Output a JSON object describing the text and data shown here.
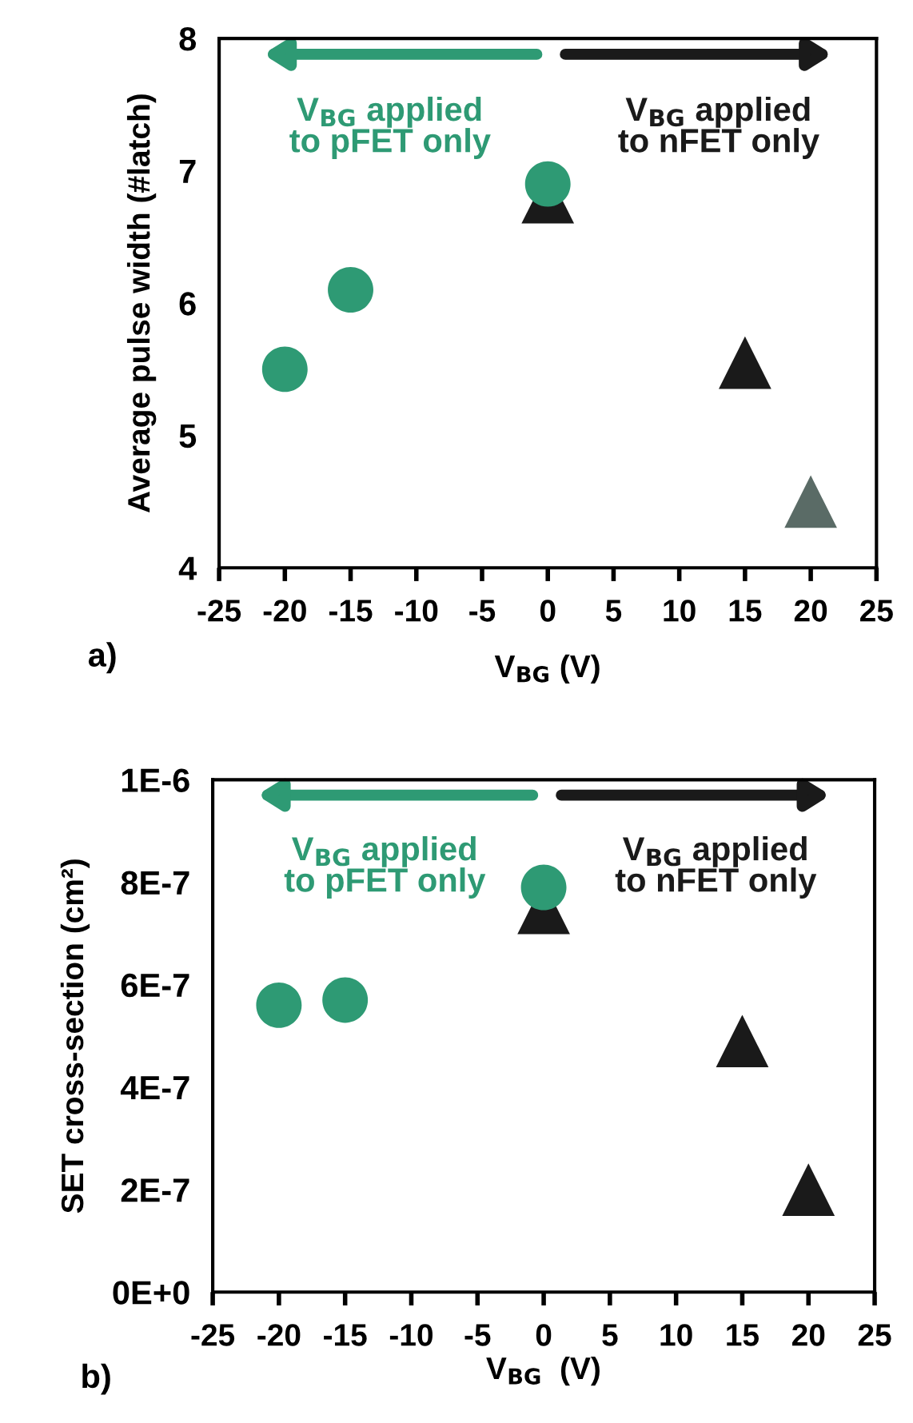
{
  "chart_data": [
    {
      "type": "scatter",
      "xlabel": "V$_{BG}$ (V)",
      "ylabel": "Average pulse width (#latch)",
      "xlim": [
        -25,
        25
      ],
      "xticks": [
        -25,
        -20,
        -15,
        -10,
        -5,
        0,
        5,
        10,
        15,
        20,
        25
      ],
      "ylim": [
        4,
        8
      ],
      "yticks": [
        4,
        5,
        6,
        7,
        8
      ],
      "grid": false,
      "legend": false,
      "series": [
        {
          "x": [
            -20,
            -15,
            0
          ],
          "values": [
            5.5,
            6.1,
            6.9
          ],
          "color": "#2e9a74",
          "marker": "circle"
        },
        {
          "x": [
            0,
            15,
            20
          ],
          "values": [
            6.8,
            5.55,
            4.5
          ],
          "color": "#1a1a1a",
          "colors": [
            "#1a1a1a",
            "#1a1a1a",
            "#5a6b66"
          ],
          "marker": "triangle"
        }
      ],
      "annotations": [
        "V$_{BG}$ applied\nto pFET only",
        "V$_{BG}$ applied\nto nFET only",
        "a)"
      ]
    },
    {
      "type": "scatter",
      "xlabel": "V$_{BG}$  (V)",
      "ylabel": "SET cross-section (cm²)",
      "xlim": [
        -25,
        25
      ],
      "xticks": [
        -25,
        -20,
        -15,
        -10,
        -5,
        0,
        5,
        10,
        15,
        20,
        25
      ],
      "ylim": [
        0,
        1e-06
      ],
      "yticks": [
        {
          "value": 0,
          "label": "0E+0"
        },
        {
          "value": 2e-07,
          "label": "2E-7"
        },
        {
          "value": 4e-07,
          "label": "4E-7"
        },
        {
          "value": 6e-07,
          "label": "6E-7"
        },
        {
          "value": 8e-07,
          "label": "8E-7"
        },
        {
          "value": 1e-06,
          "label": "1E-6"
        }
      ],
      "grid": false,
      "legend": false,
      "series": [
        {
          "x": [
            -20,
            -15,
            0
          ],
          "values": [
            5.6e-07,
            5.7e-07,
            7.9e-07
          ],
          "color": "#2e9a74",
          "marker": "circle"
        },
        {
          "x": [
            0,
            15,
            20
          ],
          "values": [
            7.5e-07,
            4.9e-07,
            2e-07
          ],
          "color": "#1a1a1a",
          "marker": "triangle"
        }
      ],
      "annotations": [
        "V$_{BG}$ applied\nto pFET only",
        "V$_{BG}$ applied\nto nFET only",
        "b)"
      ]
    }
  ]
}
